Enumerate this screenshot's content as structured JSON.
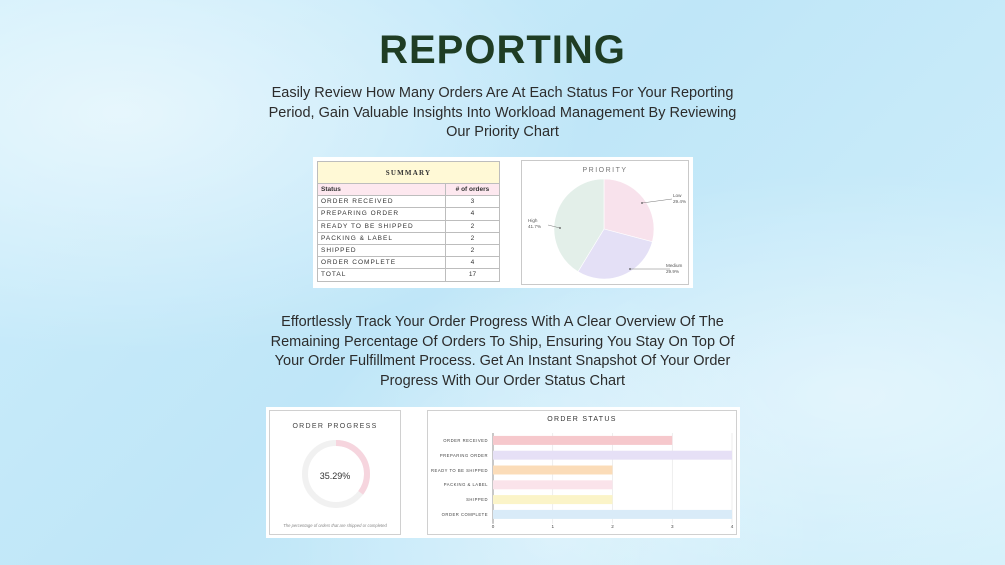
{
  "title": "REPORTING",
  "intro_text": "Easily Review How Many Orders Are At Each Status For Your Reporting Period, Gain Valuable Insights Into Workload Management By Reviewing Our Priority Chart",
  "progress_text": "Effortlessly Track Your Order Progress With A Clear Overview Of The Remaining Percentage Of Orders To Ship, Ensuring You Stay On Top Of Your Order Fulfillment Process. Get An Instant Snapshot Of Your Order Progress With Our Order Status Chart",
  "summary": {
    "heading": "SUMMARY",
    "col_status": "Status",
    "col_orders": "# of orders",
    "rows": [
      {
        "status": "ORDER RECEIVED",
        "count": "3"
      },
      {
        "status": "PREPARING ORDER",
        "count": "4"
      },
      {
        "status": "READY TO BE SHIPPED",
        "count": "2"
      },
      {
        "status": "PACKING & LABEL",
        "count": "2"
      },
      {
        "status": "SHIPPED",
        "count": "2"
      },
      {
        "status": "ORDER COMPLETE",
        "count": "4"
      },
      {
        "status": "TOTAL",
        "count": "17"
      }
    ]
  },
  "chart_data": [
    {
      "type": "pie",
      "title": "PRIORITY",
      "slices": [
        {
          "label": "Low",
          "pct_label": "29.4%",
          "value": 29.4,
          "color": "#f8e2ec"
        },
        {
          "label": "Medium",
          "pct_label": "29.9%",
          "value": 29.9,
          "color": "#e4e0f6"
        },
        {
          "label": "High",
          "pct_label": "41.7%",
          "value": 41.7,
          "color": "#e3efe9"
        }
      ]
    },
    {
      "type": "donut",
      "title": "ORDER PROGRESS",
      "value": 35.29,
      "value_label": "35.29%",
      "note": "The percentage of orders that are shipped or completed",
      "fill_color": "#f6d5de",
      "track_color": "#f1f1f1"
    },
    {
      "type": "bar",
      "orientation": "horizontal",
      "title": "ORDER STATUS",
      "categories": [
        "ORDER RECEIVED",
        "PREPARING ORDER",
        "READY TO BE SHIPPED",
        "PACKING & LABEL",
        "SHIPPED",
        "ORDER COMPLETE"
      ],
      "values": [
        3,
        4,
        2,
        2,
        2,
        4
      ],
      "colors": [
        "#f6c8cc",
        "#e6e0f6",
        "#fbdcb8",
        "#fae3ea",
        "#fbf4c8",
        "#d9ebf8"
      ],
      "xlim": [
        0,
        4
      ],
      "xticks": [
        0,
        1,
        2,
        3,
        4
      ],
      "grid": true
    }
  ]
}
